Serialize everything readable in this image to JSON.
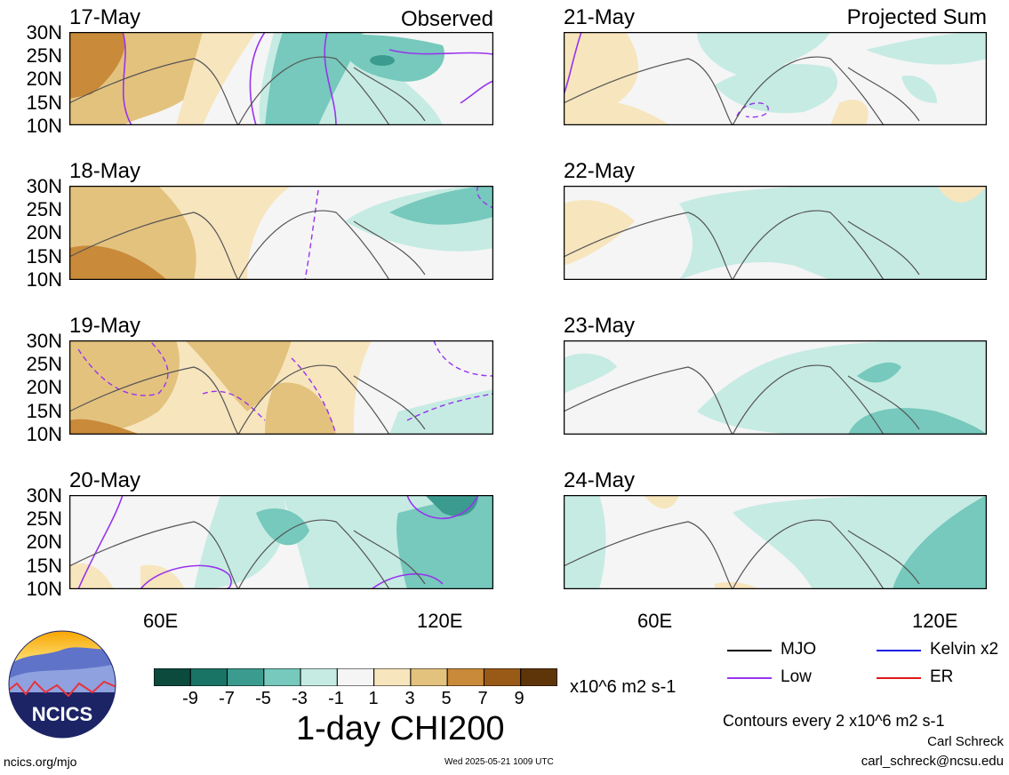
{
  "panels": {
    "p0": {
      "date": "17-May",
      "corner": "Observed"
    },
    "p1": {
      "date": "18-May",
      "corner": ""
    },
    "p2": {
      "date": "19-May",
      "corner": ""
    },
    "p3": {
      "date": "20-May",
      "corner": ""
    },
    "p4": {
      "date": "21-May",
      "corner": "Projected Sum"
    },
    "p5": {
      "date": "22-May",
      "corner": ""
    },
    "p6": {
      "date": "23-May",
      "corner": ""
    },
    "p7": {
      "date": "24-May",
      "corner": ""
    }
  },
  "lat_labels": [
    "30N",
    "25N",
    "20N",
    "15N",
    "10N"
  ],
  "lon_labels": {
    "left": [
      "60E",
      "120E"
    ],
    "right": [
      "60E",
      "120E"
    ]
  },
  "colorbar": {
    "labels": [
      "-9",
      "-7",
      "-5",
      "-3",
      "-1",
      "1",
      "3",
      "5",
      "7",
      "9"
    ],
    "colors": [
      "#0c4a3e",
      "#1a7466",
      "#3c9b8f",
      "#76c9bc",
      "#c6ebe3",
      "#f5f5f5",
      "#f7e5bd",
      "#e3c27e",
      "#c98a3a",
      "#9a5a17",
      "#5e3509"
    ],
    "units": "x10^6 m2 s-1"
  },
  "title": "1-day CHI200",
  "legend": {
    "mjo": {
      "label": "MJO",
      "color": "#000000"
    },
    "kelvin": {
      "label": "Kelvin x2",
      "color": "#1f1fe6"
    },
    "low": {
      "label": "Low",
      "color": "#9933ee"
    },
    "er": {
      "label": "ER",
      "color": "#e01818"
    }
  },
  "contour_note": "Contours every 2 x10^6 m2 s-1",
  "author": "Carl Schreck",
  "email": "carl_schreck@ncsu.edu",
  "url": "ncics.org/mjo",
  "timestamp": "Wed 2025-05-21 1009 UTC",
  "logo_text": "NCICS"
}
